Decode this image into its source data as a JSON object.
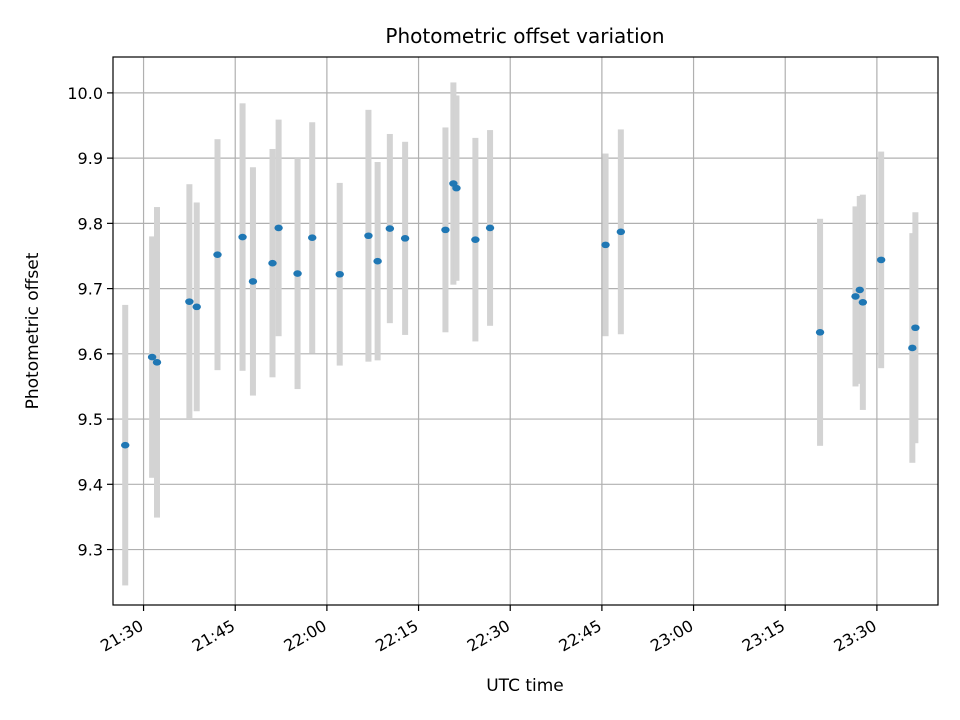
{
  "chart_data": {
    "type": "scatter",
    "title": "Photometric offset variation",
    "xlabel": "UTC time",
    "ylabel": "Photometric offset",
    "grid": true,
    "colors": {
      "point": "#1f77b4",
      "errorbar": "#d3d3d3",
      "grid": "#b0b0b0"
    },
    "x_axis": {
      "type": "time",
      "xlim": [
        "21:25",
        "23:40"
      ],
      "ticks": [
        "21:30",
        "21:45",
        "22:00",
        "22:15",
        "22:30",
        "22:45",
        "23:00",
        "23:15",
        "23:30"
      ]
    },
    "y_axis": {
      "ylim": [
        9.215,
        10.055
      ],
      "ticks": [
        "9.3",
        "9.4",
        "9.5",
        "9.6",
        "9.7",
        "9.8",
        "9.9",
        "10.0"
      ]
    },
    "series": [
      {
        "points": [
          {
            "t": "21:27:00",
            "y": 9.46,
            "err": 0.215
          },
          {
            "t": "21:31:24",
            "y": 9.595,
            "err": 0.185
          },
          {
            "t": "21:32:12",
            "y": 9.587,
            "err": 0.238
          },
          {
            "t": "21:37:30",
            "y": 9.68,
            "err": 0.18
          },
          {
            "t": "21:38:42",
            "y": 9.672,
            "err": 0.16
          },
          {
            "t": "21:42:06",
            "y": 9.752,
            "err": 0.177
          },
          {
            "t": "21:46:12",
            "y": 9.779,
            "err": 0.205
          },
          {
            "t": "21:47:54",
            "y": 9.711,
            "err": 0.175
          },
          {
            "t": "21:51:06",
            "y": 9.739,
            "err": 0.175
          },
          {
            "t": "21:52:06",
            "y": 9.793,
            "err": 0.166
          },
          {
            "t": "21:55:12",
            "y": 9.723,
            "err": 0.177
          },
          {
            "t": "21:57:36",
            "y": 9.778,
            "err": 0.177
          },
          {
            "t": "22:02:06",
            "y": 9.722,
            "err": 0.14
          },
          {
            "t": "22:06:48",
            "y": 9.781,
            "err": 0.193
          },
          {
            "t": "22:08:18",
            "y": 9.742,
            "err": 0.152
          },
          {
            "t": "22:10:18",
            "y": 9.792,
            "err": 0.145
          },
          {
            "t": "22:12:48",
            "y": 9.777,
            "err": 0.148
          },
          {
            "t": "22:19:24",
            "y": 9.79,
            "err": 0.157
          },
          {
            "t": "22:20:42",
            "y": 9.861,
            "err": 0.155
          },
          {
            "t": "22:21:12",
            "y": 9.854,
            "err": 0.142
          },
          {
            "t": "22:24:18",
            "y": 9.775,
            "err": 0.156
          },
          {
            "t": "22:26:42",
            "y": 9.793,
            "err": 0.15
          },
          {
            "t": "22:45:36",
            "y": 9.767,
            "err": 0.14
          },
          {
            "t": "22:48:06",
            "y": 9.787,
            "err": 0.157
          },
          {
            "t": "23:20:42",
            "y": 9.633,
            "err": 0.174
          },
          {
            "t": "23:26:30",
            "y": 9.688,
            "err": 0.138
          },
          {
            "t": "23:27:12",
            "y": 9.698,
            "err": 0.144
          },
          {
            "t": "23:27:42",
            "y": 9.679,
            "err": 0.165
          },
          {
            "t": "23:30:42",
            "y": 9.744,
            "err": 0.166
          },
          {
            "t": "23:35:48",
            "y": 9.609,
            "err": 0.176
          },
          {
            "t": "23:36:18",
            "y": 9.64,
            "err": 0.177
          }
        ]
      }
    ]
  }
}
